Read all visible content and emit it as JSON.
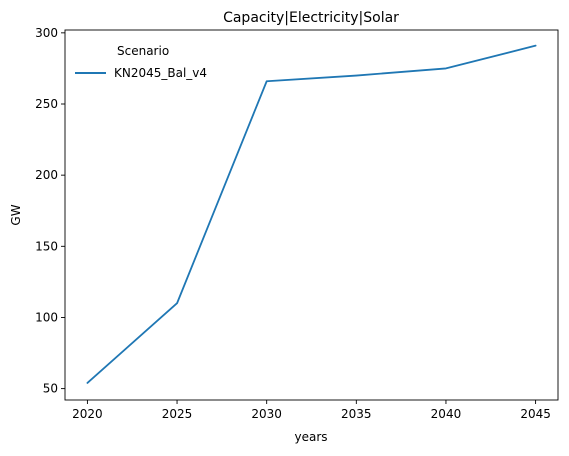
{
  "chart_data": {
    "type": "line",
    "title": "Capacity|Electricity|Solar",
    "xlabel": "years",
    "ylabel": "GW",
    "x": [
      2020,
      2025,
      2030,
      2035,
      2040,
      2045
    ],
    "series": [
      {
        "name": "KN2045_Bal_v4",
        "values": [
          54,
          110,
          266,
          270,
          275,
          291
        ],
        "color": "#1f77b4"
      }
    ],
    "xlim": [
      2018.75,
      2046.25
    ],
    "ylim": [
      42,
      302
    ],
    "xticks": [
      2020,
      2025,
      2030,
      2035,
      2040,
      2045
    ],
    "yticks": [
      50,
      100,
      150,
      200,
      250,
      300
    ],
    "legend": {
      "title": "Scenario",
      "position": "top-left"
    },
    "grid": false
  }
}
